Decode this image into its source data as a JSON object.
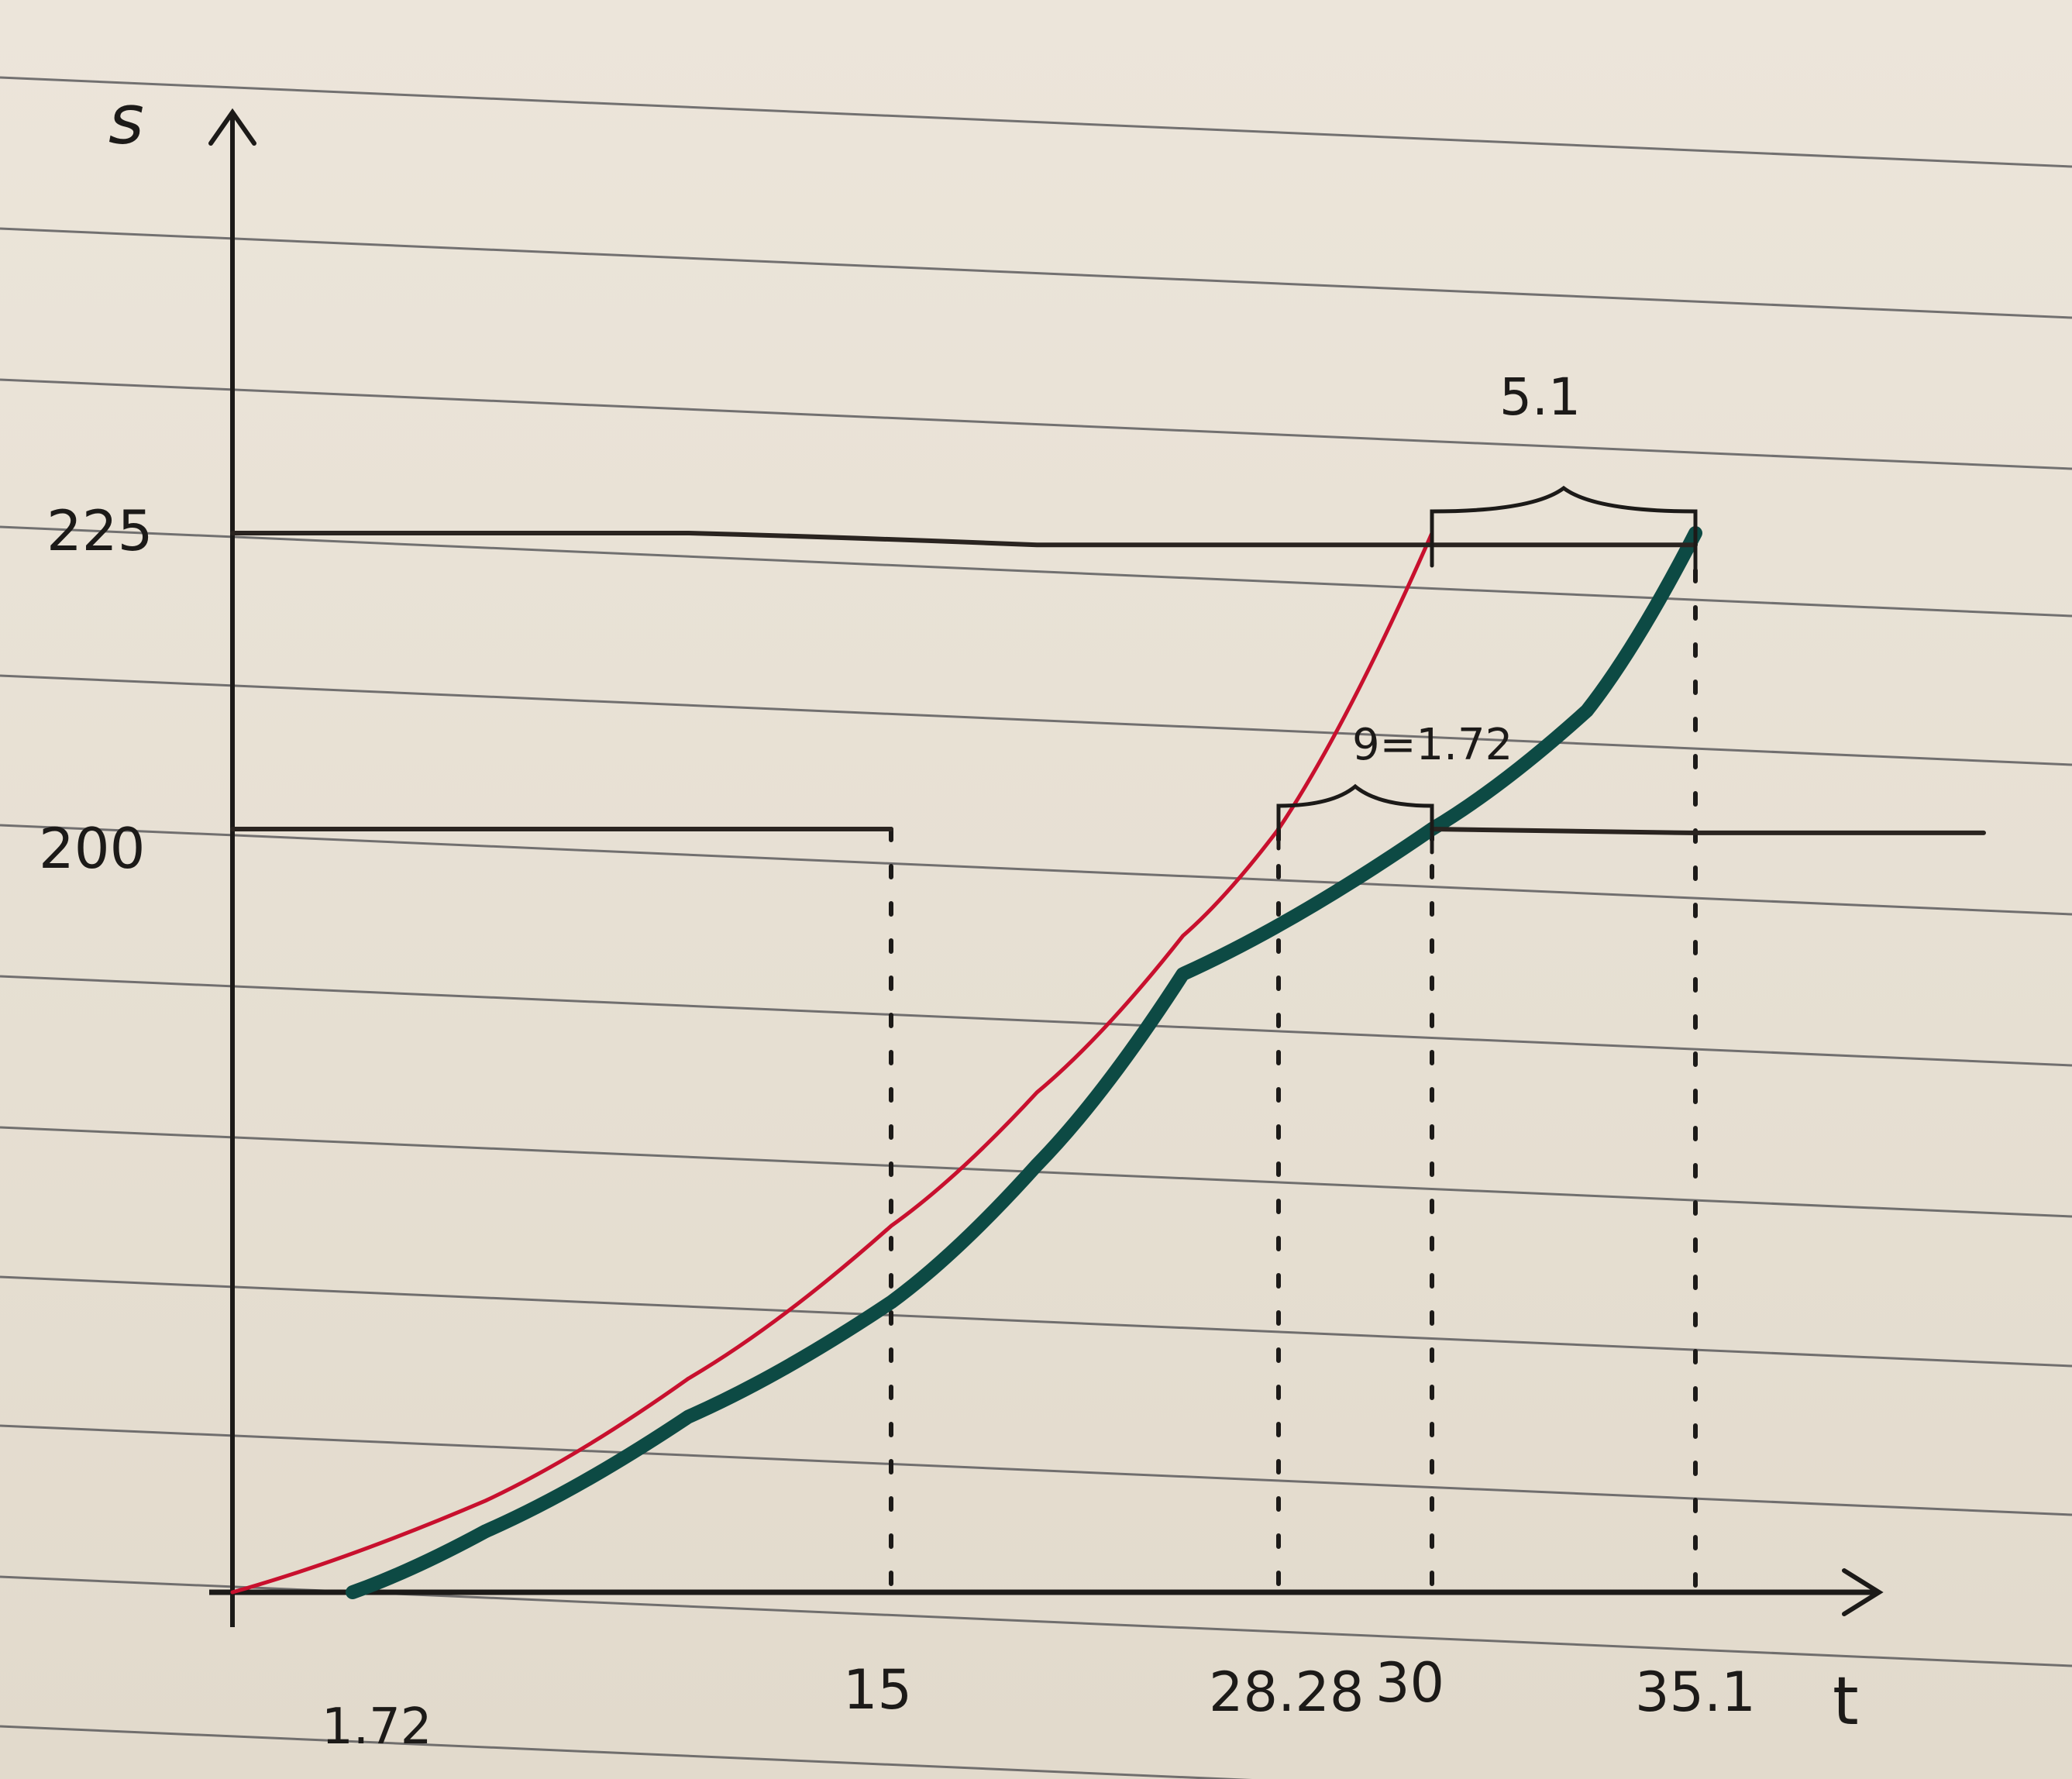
{
  "chart_data": {
    "type": "line",
    "title": "",
    "xlabel": "t",
    "ylabel": "s",
    "x_tick_labels": [
      "1.72",
      "15",
      "28.28",
      "30",
      "35.1"
    ],
    "y_tick_labels": [
      "225",
      "200"
    ],
    "annotations": [
      "5.1",
      "9=1.72"
    ],
    "series": [
      {
        "color": "#c8102e",
        "points": [
          [
            0,
            0
          ],
          [
            5,
            24
          ],
          [
            10,
            56
          ],
          [
            15,
            96
          ],
          [
            20,
            131
          ],
          [
            25,
            172
          ],
          [
            28.28,
            200
          ],
          [
            30,
            225
          ]
        ]
      },
      {
        "color": "#0d4a44",
        "points": [
          [
            1.72,
            0
          ],
          [
            5,
            16
          ],
          [
            10,
            46
          ],
          [
            15,
            76
          ],
          [
            20,
            112
          ],
          [
            25,
            162
          ],
          [
            30,
            200
          ],
          [
            33,
            210
          ],
          [
            35.1,
            225
          ]
        ]
      },
      {
        "color": "#2a2420",
        "points": [
          [
            0,
            225
          ],
          [
            10,
            225
          ],
          [
            20,
            224
          ],
          [
            30,
            224
          ],
          [
            35.1,
            224
          ]
        ]
      },
      {
        "color": "#2a2420",
        "points": [
          [
            0,
            200
          ],
          [
            7.5,
            200
          ],
          [
            15,
            200
          ]
        ]
      },
      {
        "color": "#2a2420",
        "points": [
          [
            30,
            200
          ],
          [
            35,
            199
          ],
          [
            40,
            199
          ]
        ]
      }
    ],
    "reference_lines": [
      {
        "x": 15,
        "y": 200
      },
      {
        "x": 28.28,
        "y": 200
      },
      {
        "x": 30,
        "y": 200
      },
      {
        "x": 35.1,
        "y": 225
      }
    ],
    "xlim": [
      0,
      40
    ],
    "ylim": [
      0,
      250
    ]
  }
}
